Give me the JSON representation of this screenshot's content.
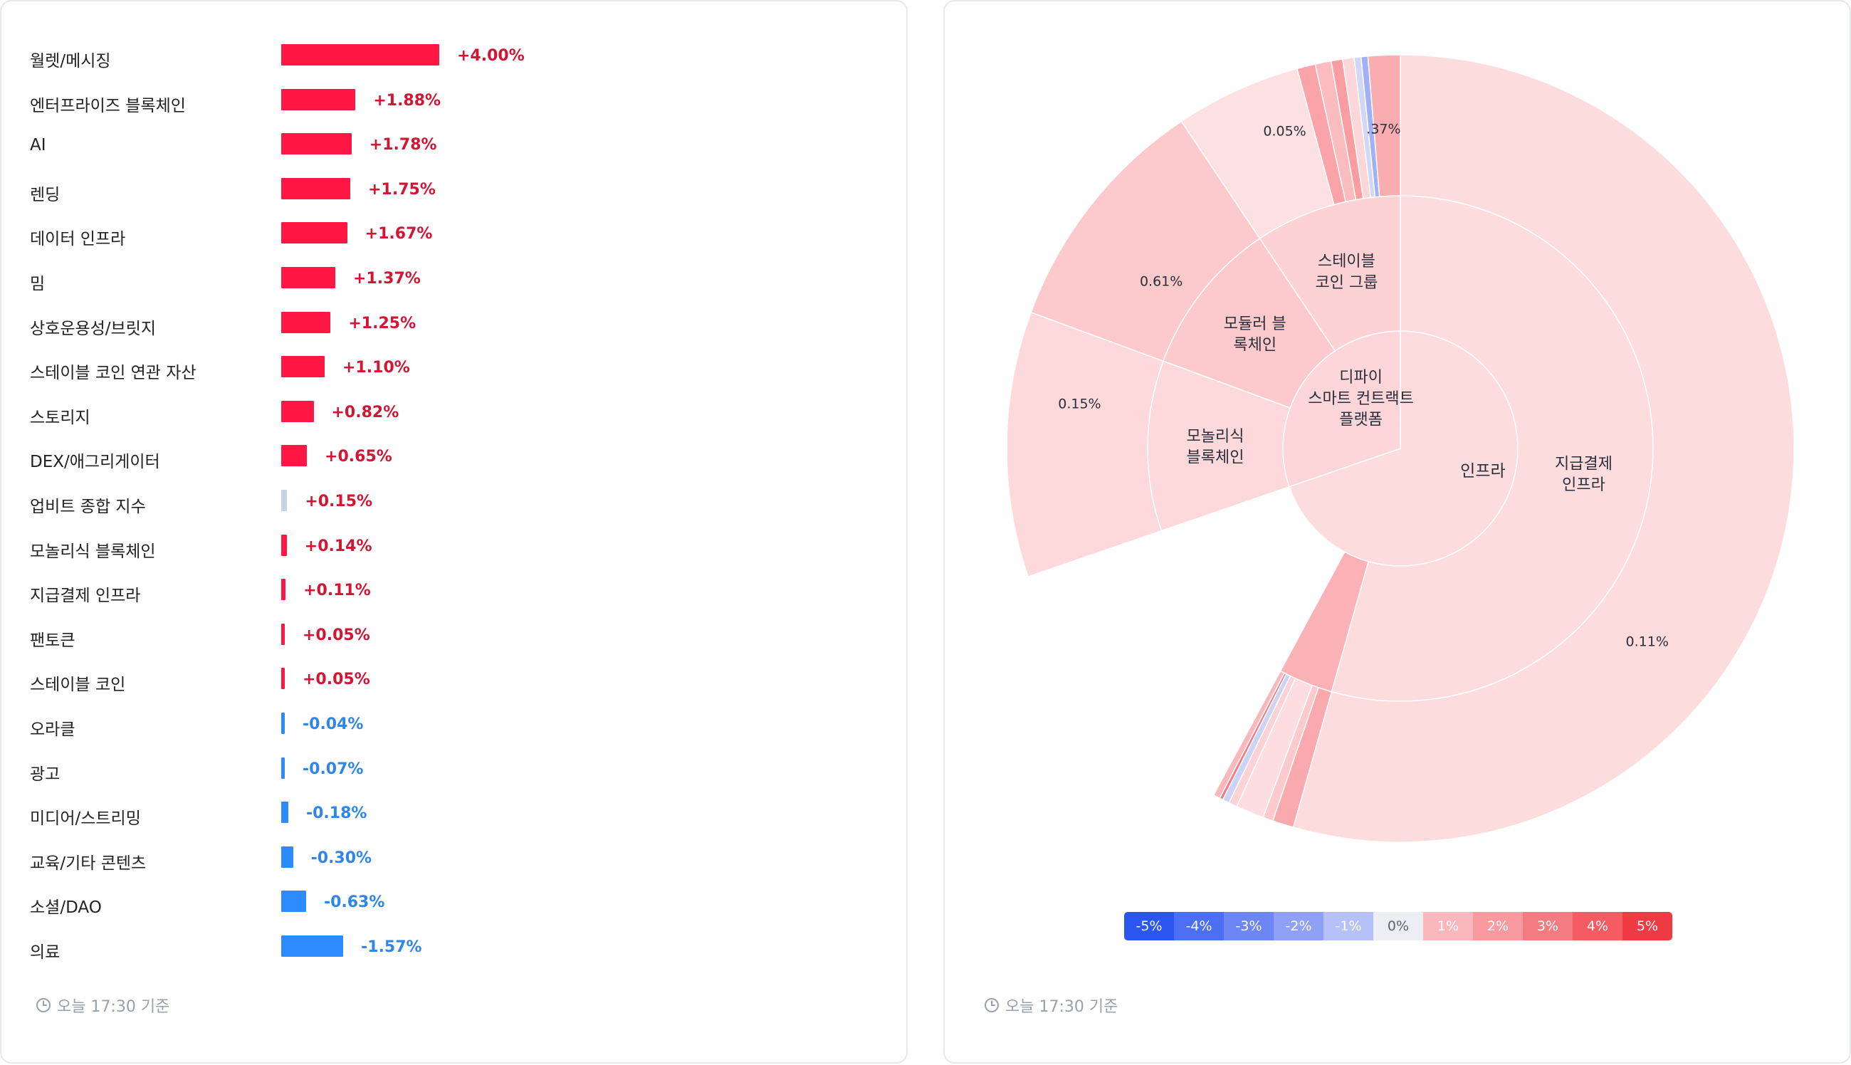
{
  "left_panel": {
    "footer": "오늘 17:30 기준"
  },
  "right_panel": {
    "footer": "오늘 17:30 기준"
  },
  "colors": {
    "positive_bar": "#ff1744",
    "positive_text": "#d31432",
    "negative_bar": "#2e8bff",
    "negative_text": "#2f86e8",
    "neutral_bar": "#c7d2e4",
    "ring_border": "#ffffff"
  },
  "chart_data": [
    {
      "type": "bar",
      "orientation": "horizontal",
      "categories": [
        "월렛/메시징",
        "엔터프라이즈 블록체인",
        "AI",
        "렌딩",
        "데이터 인프라",
        "밈",
        "상호운용성/브릿지",
        "스테이블 코인 연관 자산",
        "스토리지",
        "DEX/애그리게이터",
        "업비트 종합 지수",
        "모놀리식 블록체인",
        "지급결제 인프라",
        "팬토큰",
        "스테이블 코인",
        "오라클",
        "광고",
        "미디어/스트리밍",
        "교육/기타 콘텐츠",
        "소셜/DAO",
        "의료"
      ],
      "values": [
        4.0,
        1.88,
        1.78,
        1.75,
        1.67,
        1.37,
        1.25,
        1.1,
        0.82,
        0.65,
        0.15,
        0.14,
        0.11,
        0.05,
        0.05,
        -0.04,
        -0.07,
        -0.18,
        -0.3,
        -0.63,
        -1.57
      ],
      "value_labels": [
        "+4.00%",
        "+1.88%",
        "+1.78%",
        "+1.75%",
        "+1.67%",
        "+1.37%",
        "+1.25%",
        "+1.10%",
        "+0.82%",
        "+0.65%",
        "+0.15%",
        "+0.14%",
        "+0.11%",
        "+0.05%",
        "+0.05%",
        "-0.04%",
        "-0.07%",
        "-0.18%",
        "-0.30%",
        "-0.63%",
        "-1.57%"
      ],
      "neutral_category": "업비트 종합 지수"
    },
    {
      "type": "sunburst",
      "center": {
        "label": "인프라",
        "change": 0.11,
        "children": [
          {
            "label_lines": [
              "지급결제",
              "인프라"
            ],
            "share": 0.78,
            "change": 0.11,
            "outer_label": "0.11%",
            "outer": [
              {
                "share": 1.0,
                "change": 0.11
              }
            ]
          },
          {
            "label_lines": [],
            "share": 0.05,
            "change": 1.2,
            "outer": [
              {
                "share": 0.25,
                "change": 1.5
              },
              {
                "share": 0.12,
                "change": 0.6
              },
              {
                "share": 0.33,
                "change": 0.1
              },
              {
                "share": 0.1,
                "change": 0.4
              },
              {
                "share": 0.08,
                "change": -0.6
              },
              {
                "share": 0.04,
                "change": 3.0
              },
              {
                "share": 0.08,
                "change": 1.0
              }
            ]
          }
        ]
      },
      "second": {
        "label_lines": [
          "디파이",
          "스마트 컨트랙트",
          "플랫폼"
        ],
        "change": 0.3,
        "children": [
          {
            "label_lines": [
              "모놀리식",
              "블록체인"
            ],
            "share": 0.36,
            "change": 0.15,
            "outer_label": "0.15%",
            "outer": [
              {
                "share": 1.0,
                "change": 0.15
              }
            ]
          },
          {
            "label_lines": [
              "모듈러 블",
              "록체인"
            ],
            "share": 0.33,
            "change": 0.61,
            "outer_label": "0.61%",
            "outer": [
              {
                "share": 1.0,
                "change": 0.61
              }
            ]
          },
          {
            "label_lines": [
              "스테이블",
              "코인 그룹"
            ],
            "share": 0.31,
            "change": 0.4,
            "outer_label": "0.05%",
            "outer": [
              {
                "share": 0.55,
                "change": 0.05
              },
              {
                "share": 0.08,
                "change": 1.7
              },
              {
                "share": 0.07,
                "change": 0.9
              },
              {
                "share": 0.05,
                "change": 1.9
              },
              {
                "share": 0.05,
                "change": 0.3
              },
              {
                "share": 0.03,
                "change": -0.5
              },
              {
                "share": 0.03,
                "change": -1.5
              },
              {
                "share": 0.14,
                "change": 1.37
              }
            ],
            "partial_label": ".37%"
          }
        ]
      },
      "color_scale": {
        "labels": [
          "-5%",
          "-4%",
          "-3%",
          "-2%",
          "-1%",
          "0%",
          "1%",
          "2%",
          "3%",
          "4%",
          "5%"
        ],
        "colors": [
          "#2b56f0",
          "#4c6ef3",
          "#6e86f4",
          "#8fa1f6",
          "#b5c1f8",
          "#eceef3",
          "#fbb8bc",
          "#f99a9f",
          "#f57b82",
          "#f45b63",
          "#f03a44"
        ],
        "text_colors": [
          "#ffffff",
          "#ffffff",
          "#ffffff",
          "#ffffff",
          "#ffffff",
          "#5c6370",
          "#ffffff",
          "#ffffff",
          "#ffffff",
          "#ffffff",
          "#ffffff"
        ]
      }
    }
  ]
}
